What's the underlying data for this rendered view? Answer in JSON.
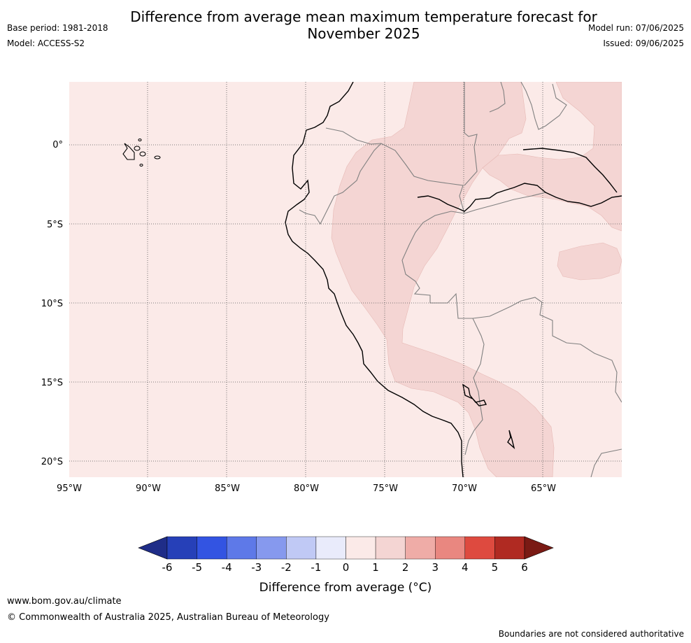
{
  "title_line1": "Difference from average mean maximum temperature forecast for",
  "title_line2": "November 2025",
  "meta": {
    "base_period": "Base period: 1981-2018",
    "model": "Model: ACCESS-S2",
    "model_run": "Model run: 07/06/2025",
    "issued": "Issued: 09/06/2025"
  },
  "map": {
    "lon_ticks": [
      "95°W",
      "90°W",
      "85°W",
      "80°W",
      "75°W",
      "70°W",
      "65°W"
    ],
    "lat_ticks": [
      "0°",
      "5°S",
      "10°S",
      "15°S",
      "20°S"
    ],
    "colors": {
      "background_anomaly": "#fbeae8",
      "warm_anomaly": "#f4d5d3",
      "coast": "#000000",
      "border": "#808080"
    }
  },
  "colorbar": {
    "title": "Difference from average ($^\\circ$C)",
    "title_display": "Difference from average (°C)",
    "labels": [
      "-6",
      "-5",
      "-4",
      "-3",
      "-2",
      "-1",
      "0",
      "1",
      "2",
      "3",
      "4",
      "5",
      "6"
    ],
    "colors": [
      "#1f2d88",
      "#2640b8",
      "#3354e2",
      "#5e79e8",
      "#8699ee",
      "#c0c9f5",
      "#e9ebfb",
      "#fbeae8",
      "#f4d5d3",
      "#efaca7",
      "#e98780",
      "#de4a3f",
      "#b02a22",
      "#7a1a14"
    ]
  },
  "footer": {
    "url": "www.bom.gov.au/climate",
    "copyright": "© Commonwealth of Australia 2025, Australian Bureau of Meteorology",
    "note": "Boundaries are not considered authoritative"
  }
}
